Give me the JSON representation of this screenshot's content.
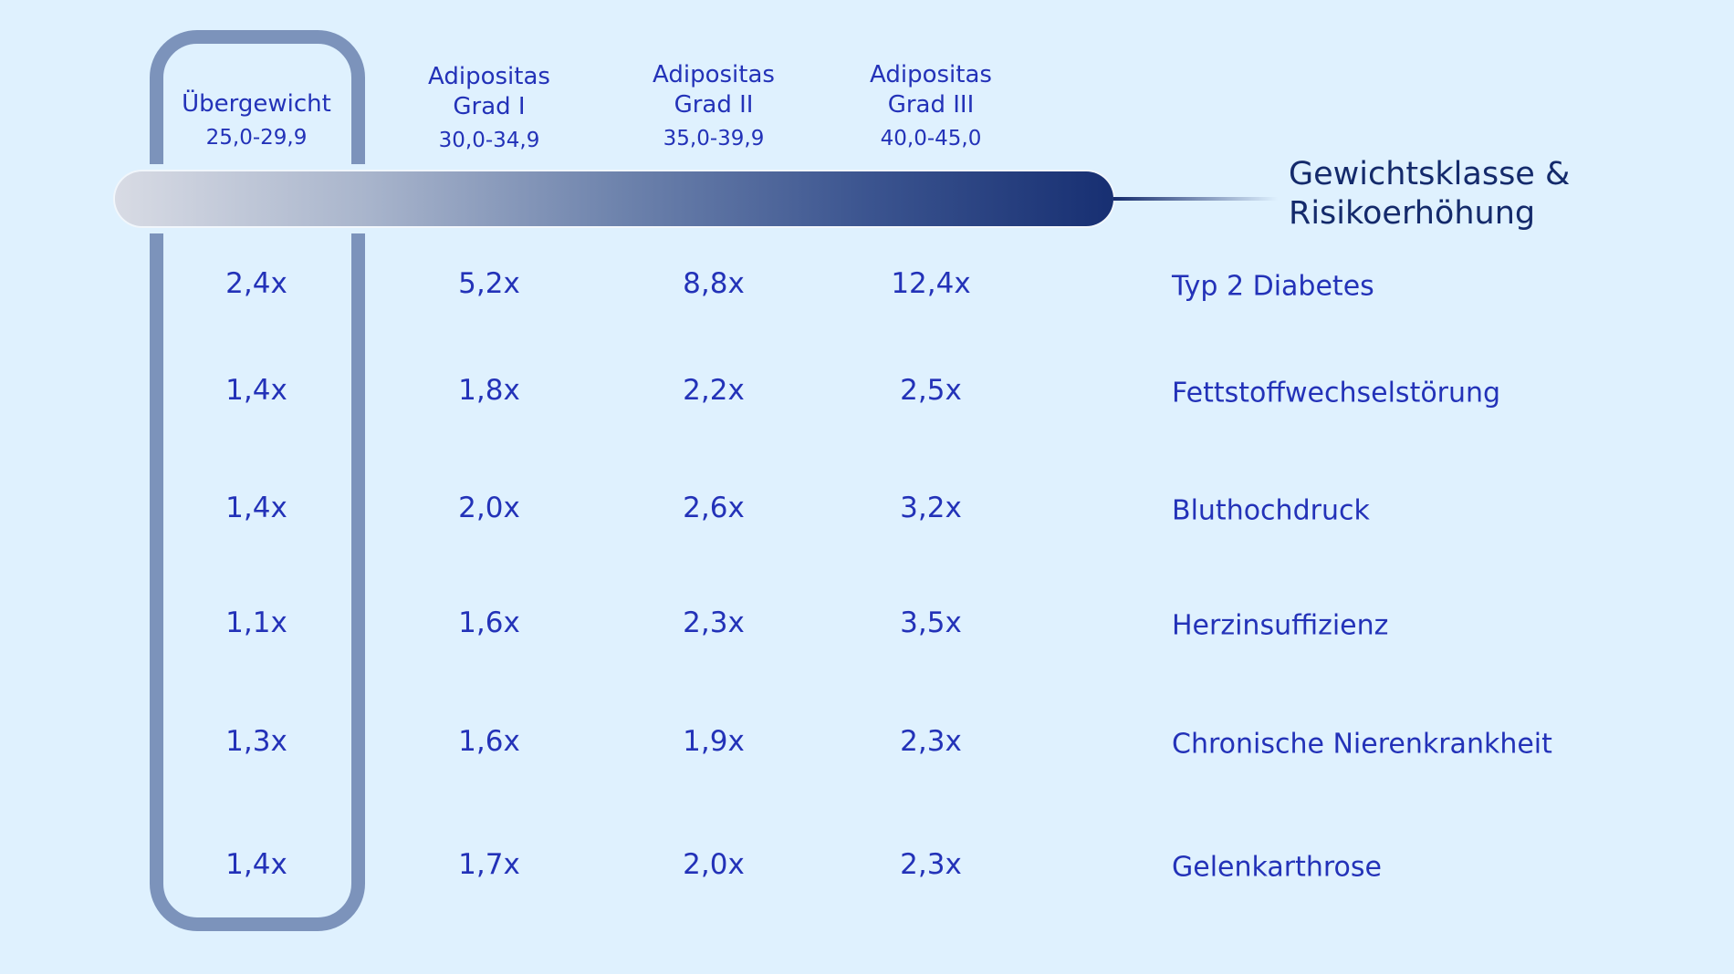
{
  "title": [
    "Gewichtsklasse &",
    "Risikoerhöhung"
  ],
  "colors": {
    "background": "#dff1fe",
    "text": "#2332b8",
    "title": "#142a6b",
    "highlight_border": "#7c93bb",
    "bar_start": "#d8dbe4",
    "bar_end": "#172f72"
  },
  "highlighted_column": 0,
  "columns": [
    {
      "name": [
        "Übergewicht"
      ],
      "range": "25,0-29,9"
    },
    {
      "name": [
        "Adipositas",
        "Grad I"
      ],
      "range": "30,0-34,9"
    },
    {
      "name": [
        "Adipositas",
        "Grad II"
      ],
      "range": "35,0-39,9"
    },
    {
      "name": [
        "Adipositas",
        "Grad III"
      ],
      "range": "40,0-45,0"
    }
  ],
  "rows": [
    {
      "label": "Typ 2 Diabetes",
      "values": [
        "2,4x",
        "5,2x",
        "8,8x",
        "12,4x"
      ]
    },
    {
      "label": "Fettstoffwechselstörung",
      "values": [
        "1,4x",
        "1,8x",
        "2,2x",
        "2,5x"
      ]
    },
    {
      "label": "Bluthochdruck",
      "values": [
        "1,4x",
        "2,0x",
        "2,6x",
        "3,2x"
      ]
    },
    {
      "label": "Herzinsuffizienz",
      "values": [
        "1,1x",
        "1,6x",
        "2,3x",
        "3,5x"
      ]
    },
    {
      "label": "Chronische Nierenkrankheit",
      "values": [
        "1,3x",
        "1,6x",
        "1,9x",
        "2,3x"
      ]
    },
    {
      "label": "Gelenkarthrose",
      "values": [
        "1,4x",
        "1,7x",
        "2,0x",
        "2,3x"
      ]
    }
  ]
}
